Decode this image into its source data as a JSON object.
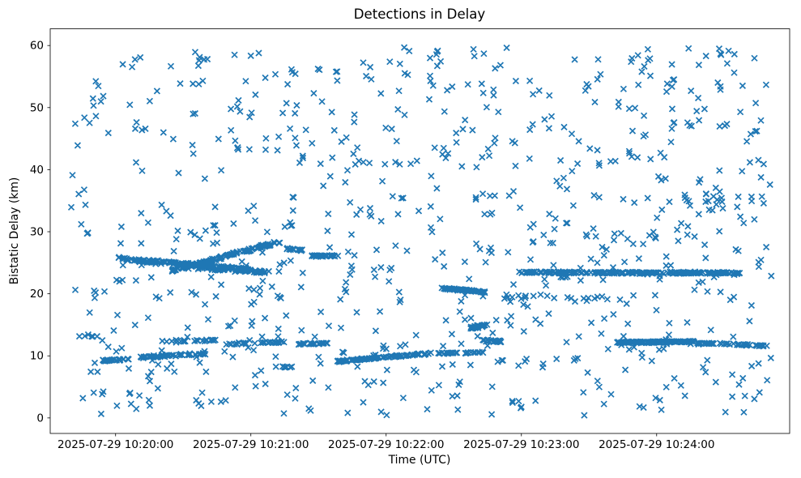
{
  "chart_data": {
    "type": "scatter",
    "title": "Detections in Delay",
    "xlabel": "Time (UTC)",
    "ylabel": "Bistatic Delay (km)",
    "grid": false,
    "legend": "none",
    "marker": {
      "style": "x",
      "color": "#1f77b4",
      "half_size_px": 3.5,
      "stroke_px": 1.7
    },
    "axes": {
      "frame_color": "#000000",
      "frame_width": 0.8,
      "background": "#ffffff",
      "x_unit": "seconds after 2025-07-29 10:20:00 UTC",
      "xlim_seconds": [
        -29,
        299
      ],
      "ylim": [
        -2.5,
        62.7
      ],
      "x_ticks": [
        {
          "t": 0,
          "label": "2025-07-29 10:20:00"
        },
        {
          "t": 60,
          "label": "2025-07-29 10:21:00"
        },
        {
          "t": 120,
          "label": "2025-07-29 10:22:00"
        },
        {
          "t": 180,
          "label": "2025-07-29 10:23:00"
        },
        {
          "t": 240,
          "label": "2025-07-29 10:24:00"
        }
      ],
      "y_ticks": [
        {
          "v": 0,
          "label": "0"
        },
        {
          "v": 10,
          "label": "10"
        },
        {
          "v": 20,
          "label": "20"
        },
        {
          "v": 30,
          "label": "30"
        },
        {
          "v": 40,
          "label": "40"
        },
        {
          "v": 50,
          "label": "50"
        },
        {
          "v": 60,
          "label": "60"
        }
      ]
    },
    "points_model": {
      "description": "Dense blue x-marker detections: diffuse clutter across 0.4-59.8 km plus distinct target tracks (t = seconds after 10:20:00 UTC, y = bistatic delay km)",
      "background_scatter": {
        "count": 820,
        "t_range": [
          -20,
          291
        ],
        "y_range": [
          0.4,
          59.8
        ],
        "pair_fraction": 0.15,
        "seed": 20250729
      },
      "tracks": [
        {
          "t_start": 3,
          "t_end": 60,
          "y_start": 25.6,
          "y_end": 23.9,
          "count": 150,
          "spread": 0.28
        },
        {
          "t_start": 25,
          "t_end": 73,
          "y_start": 23.7,
          "y_end": 28.4,
          "count": 120,
          "spread": 0.26
        },
        {
          "t_start": 36,
          "t_end": 70,
          "y_start": 24.2,
          "y_end": 23.4,
          "count": 55,
          "spread": 0.3
        },
        {
          "t_start": 76,
          "t_end": 83,
          "y_start": 27.3,
          "y_end": 27.0,
          "count": 16,
          "spread": 0.15
        },
        {
          "t_start": 87,
          "t_end": 99,
          "y_start": 26.1,
          "y_end": 26.1,
          "count": 32,
          "spread": 0.15
        },
        {
          "t_start": -18,
          "t_end": -8,
          "y_start": 13.2,
          "y_end": 13.2,
          "count": 6,
          "spread": 0.12
        },
        {
          "t_start": -6,
          "t_end": 6,
          "y_start": 9.2,
          "y_end": 9.5,
          "count": 26,
          "spread": 0.16
        },
        {
          "t_start": 11,
          "t_end": 40,
          "y_start": 9.8,
          "y_end": 10.4,
          "count": 48,
          "spread": 0.2
        },
        {
          "t_start": 19,
          "t_end": 45,
          "y_start": 12.3,
          "y_end": 12.6,
          "count": 22,
          "spread": 0.24
        },
        {
          "t_start": 48,
          "t_end": 76,
          "y_start": 11.9,
          "y_end": 12.2,
          "count": 26,
          "spread": 0.2
        },
        {
          "t_start": 81,
          "t_end": 94,
          "y_start": 11.9,
          "y_end": 12.0,
          "count": 28,
          "spread": 0.15
        },
        {
          "t_start": 71,
          "t_end": 79,
          "y_start": 8.2,
          "y_end": 8.2,
          "count": 8,
          "spread": 0.12
        },
        {
          "t_start": 98,
          "t_end": 140,
          "y_start": 9.1,
          "y_end": 10.4,
          "count": 85,
          "spread": 0.18
        },
        {
          "t_start": 143,
          "t_end": 152,
          "y_start": 10.4,
          "y_end": 10.5,
          "count": 18,
          "spread": 0.13
        },
        {
          "t_start": 155,
          "t_end": 163,
          "y_start": 10.5,
          "y_end": 10.6,
          "count": 10,
          "spread": 0.13
        },
        {
          "t_start": 144,
          "t_end": 164,
          "y_start": 20.9,
          "y_end": 20.3,
          "count": 48,
          "spread": 0.16
        },
        {
          "t_start": 157,
          "t_end": 165,
          "y_start": 14.4,
          "y_end": 15.1,
          "count": 26,
          "spread": 0.3
        },
        {
          "t_start": 163,
          "t_end": 171,
          "y_start": 12.5,
          "y_end": 12.3,
          "count": 18,
          "spread": 0.22
        },
        {
          "t_start": 171,
          "t_end": 221,
          "y_start": 19.7,
          "y_end": 19.1,
          "count": 20,
          "spread": 0.45
        },
        {
          "t_start": 179,
          "t_end": 277,
          "y_start": 23.45,
          "y_end": 23.35,
          "count": 230,
          "spread": 0.18
        },
        {
          "t_start": 222,
          "t_end": 258,
          "y_start": 12.15,
          "y_end": 12.3,
          "count": 115,
          "spread": 0.16
        },
        {
          "t_start": 258,
          "t_end": 289,
          "y_start": 12.1,
          "y_end": 11.6,
          "count": 48,
          "spread": 0.16
        }
      ]
    }
  }
}
